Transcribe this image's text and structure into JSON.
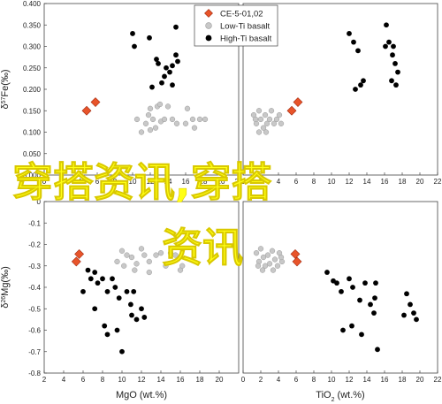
{
  "chart_data": [
    {
      "type": "scatter",
      "ylabel_parts": [
        "δ",
        "57",
        "Fe(‰)"
      ],
      "xlim": [
        0,
        22
      ],
      "ylim": [
        0.0,
        0.4
      ],
      "xticks": [
        "0",
        "2",
        "4",
        "6",
        "8",
        "10",
        "12",
        "14",
        "16",
        "18",
        "20",
        "22"
      ],
      "yticks": [
        "0.000",
        "0.050",
        "0.100",
        "0.150",
        "0.200",
        "0.250",
        "0.300",
        "0.350",
        "0.400"
      ],
      "series": [
        {
          "name": "CE-5-01,02",
          "marker": "diamond",
          "color": "#e8542a",
          "points": [
            [
              4.8,
              0.15
            ],
            [
              5.8,
              0.17
            ]
          ]
        },
        {
          "name": "Low-Ti basalt",
          "marker": "circle",
          "color": "#c8c8c8",
          "points": [
            [
              10.5,
              0.13
            ],
            [
              11.5,
              0.12
            ],
            [
              12,
              0.105
            ],
            [
              11,
              0.1
            ],
            [
              11.8,
              0.14
            ],
            [
              12.3,
              0.13
            ],
            [
              12.8,
              0.16
            ],
            [
              12.6,
              0.11
            ],
            [
              13.2,
              0.125
            ],
            [
              13.6,
              0.13
            ],
            [
              14,
              0.16
            ],
            [
              14.5,
              0.13
            ],
            [
              15,
              0.12
            ],
            [
              16,
              0.12
            ],
            [
              16.2,
              0.155
            ],
            [
              16.8,
              0.13
            ],
            [
              17,
              0.11
            ],
            [
              17.6,
              0.13
            ],
            [
              18.2,
              0.13
            ],
            [
              12,
              0.155
            ],
            [
              13.1,
              0.165
            ]
          ]
        },
        {
          "name": "High-Ti basalt",
          "marker": "circle",
          "color": "#000000",
          "points": [
            [
              10,
              0.33
            ],
            [
              10.2,
              0.3
            ],
            [
              11.9,
              0.32
            ],
            [
              12.2,
              0.205
            ],
            [
              12.7,
              0.27
            ],
            [
              12.9,
              0.26
            ],
            [
              13.3,
              0.215
            ],
            [
              13.6,
              0.23
            ],
            [
              13.8,
              0.25
            ],
            [
              14.2,
              0.24
            ],
            [
              14.5,
              0.255
            ],
            [
              14.9,
              0.345
            ],
            [
              14.9,
              0.28
            ],
            [
              15.1,
              0.265
            ],
            [
              14.5,
              0.21
            ]
          ]
        }
      ]
    },
    {
      "type": "scatter",
      "xlim": [
        0,
        22
      ],
      "ylim": [
        0.0,
        0.4
      ],
      "xticks": [
        "0",
        "2",
        "4",
        "6",
        "8",
        "10",
        "12",
        "14",
        "16",
        "18",
        "20",
        "22"
      ],
      "series": [
        {
          "name": "CE-5-01,02",
          "marker": "diamond",
          "color": "#e8542a",
          "points": [
            [
              5.5,
              0.15
            ],
            [
              6.2,
              0.17
            ]
          ]
        },
        {
          "name": "Low-Ti basalt",
          "marker": "circle",
          "color": "#c8c8c8",
          "points": [
            [
              1.2,
              0.14
            ],
            [
              1.5,
              0.12
            ],
            [
              1.8,
              0.15
            ],
            [
              2,
              0.13
            ],
            [
              2.3,
              0.11
            ],
            [
              2.5,
              0.14
            ],
            [
              2.7,
              0.12
            ],
            [
              3,
              0.13
            ],
            [
              3.2,
              0.15
            ],
            [
              3.5,
              0.12
            ],
            [
              3.8,
              0.13
            ],
            [
              4.1,
              0.14
            ],
            [
              1.8,
              0.1
            ],
            [
              2.6,
              0.1
            ],
            [
              4.3,
              0.12
            ],
            [
              1.4,
              0.13
            ]
          ]
        },
        {
          "name": "High-Ti basalt",
          "marker": "circle",
          "color": "#000000",
          "points": [
            [
              12,
              0.33
            ],
            [
              12.5,
              0.31
            ],
            [
              13,
              0.29
            ],
            [
              12.7,
              0.2
            ],
            [
              13.3,
              0.21
            ],
            [
              13.6,
              0.22
            ],
            [
              16.2,
              0.35
            ],
            [
              16.5,
              0.31
            ],
            [
              16.9,
              0.28
            ],
            [
              17.2,
              0.26
            ],
            [
              16.1,
              0.3
            ],
            [
              17.5,
              0.24
            ],
            [
              17.3,
              0.21
            ],
            [
              16.8,
              0.22
            ],
            [
              17,
              0.3
            ]
          ]
        }
      ]
    },
    {
      "type": "scatter",
      "ylabel_parts": [
        "δ",
        "26",
        "Mg(‰)"
      ],
      "xlabel": "MgO (wt.%)",
      "xlim": [
        2,
        22
      ],
      "ylim": [
        -0.8,
        0.0
      ],
      "xticks": [
        "2",
        "4",
        "6",
        "8",
        "10",
        "12",
        "14",
        "16",
        "18",
        "20"
      ],
      "yticks": [
        "0",
        "-0.1",
        "-0.2",
        "-0.3",
        "-0.4",
        "-0.5",
        "-0.6",
        "-0.7",
        "-0.8"
      ],
      "series": [
        {
          "name": "CE-5-01,02",
          "marker": "diamond",
          "color": "#e8542a",
          "points": [
            [
              5.6,
              -0.245
            ],
            [
              5.3,
              -0.28
            ]
          ]
        },
        {
          "name": "Low-Ti basalt",
          "marker": "circle",
          "color": "#c8c8c8",
          "points": [
            [
              10,
              -0.23
            ],
            [
              10.5,
              -0.25
            ],
            [
              9.5,
              -0.28
            ],
            [
              10.2,
              -0.3
            ],
            [
              11,
              -0.26
            ],
            [
              11.5,
              -0.29
            ],
            [
              12,
              -0.22
            ],
            [
              12.3,
              -0.25
            ],
            [
              12.8,
              -0.28
            ],
            [
              13.5,
              -0.25
            ],
            [
              14,
              -0.24
            ],
            [
              14.5,
              -0.3
            ],
            [
              15,
              -0.24
            ],
            [
              15.5,
              -0.25
            ],
            [
              16,
              -0.32
            ],
            [
              16.2,
              -0.3
            ],
            [
              11.3,
              -0.32
            ],
            [
              12.8,
              -0.33
            ]
          ]
        },
        {
          "name": "High-Ti basalt",
          "marker": "circle",
          "color": "#000000",
          "points": [
            [
              6.5,
              -0.32
            ],
            [
              7.2,
              -0.33
            ],
            [
              6,
              -0.42
            ],
            [
              6.8,
              -0.36
            ],
            [
              7.5,
              -0.38
            ],
            [
              8,
              -0.36
            ],
            [
              8.5,
              -0.42
            ],
            [
              9,
              -0.36
            ],
            [
              9.3,
              -0.4
            ],
            [
              9.7,
              -0.45
            ],
            [
              10.5,
              -0.42
            ],
            [
              10.9,
              -0.48
            ],
            [
              11,
              -0.53
            ],
            [
              11.2,
              -0.42
            ],
            [
              11.5,
              -0.55
            ],
            [
              12,
              -0.5
            ],
            [
              12.3,
              -0.54
            ],
            [
              8.2,
              -0.58
            ],
            [
              9.5,
              -0.6
            ],
            [
              8.5,
              -0.62
            ],
            [
              10,
              -0.7
            ],
            [
              7.2,
              -0.5
            ]
          ]
        }
      ]
    },
    {
      "type": "scatter",
      "xlabel_parts": [
        "TiO",
        "2",
        " (wt.%)"
      ],
      "xlim": [
        0,
        22
      ],
      "ylim": [
        -0.8,
        0.0
      ],
      "xticks": [
        "0",
        "2",
        "4",
        "6",
        "8",
        "10",
        "12",
        "14",
        "16",
        "18",
        "20",
        "22"
      ],
      "series": [
        {
          "name": "CE-5-01,02",
          "marker": "diamond",
          "color": "#e8542a",
          "points": [
            [
              5.9,
              -0.245
            ],
            [
              6.1,
              -0.28
            ]
          ]
        },
        {
          "name": "Low-Ti basalt",
          "marker": "circle",
          "color": "#c8c8c8",
          "points": [
            [
              1.5,
              -0.24
            ],
            [
              1.8,
              -0.28
            ],
            [
              2,
              -0.22
            ],
            [
              2.3,
              -0.26
            ],
            [
              2.5,
              -0.3
            ],
            [
              2.8,
              -0.25
            ],
            [
              3,
              -0.29
            ],
            [
              3.3,
              -0.23
            ],
            [
              3.6,
              -0.27
            ],
            [
              3.9,
              -0.3
            ],
            [
              4.1,
              -0.24
            ],
            [
              4.4,
              -0.28
            ],
            [
              2.2,
              -0.32
            ],
            [
              3.4,
              -0.32
            ],
            [
              4.3,
              -0.26
            ],
            [
              1.7,
              -0.3
            ]
          ]
        },
        {
          "name": "High-Ti basalt",
          "marker": "circle",
          "color": "#000000",
          "points": [
            [
              9.5,
              -0.33
            ],
            [
              10.2,
              -0.37
            ],
            [
              10.6,
              -0.38
            ],
            [
              11.1,
              -0.42
            ],
            [
              12,
              -0.36
            ],
            [
              12.4,
              -0.4
            ],
            [
              13.2,
              -0.46
            ],
            [
              13.8,
              -0.38
            ],
            [
              14.4,
              -0.48
            ],
            [
              14.8,
              -0.52
            ],
            [
              14.9,
              -0.45
            ],
            [
              15,
              -0.38
            ],
            [
              12.3,
              -0.58
            ],
            [
              13.4,
              -0.62
            ],
            [
              15.2,
              -0.69
            ],
            [
              18.5,
              -0.43
            ],
            [
              18.9,
              -0.48
            ],
            [
              19.3,
              -0.52
            ],
            [
              19.6,
              -0.55
            ],
            [
              18.2,
              -0.53
            ],
            [
              11.3,
              -0.6
            ]
          ]
        }
      ]
    }
  ],
  "legend": {
    "entries": [
      "CE-5-01,02",
      "Low-Ti basalt",
      "High-Ti basalt"
    ],
    "placement": "top-right of upper-left panel"
  },
  "watermark": {
    "line1": "穿搭资讯,穿搭",
    "line2": "资讯"
  }
}
